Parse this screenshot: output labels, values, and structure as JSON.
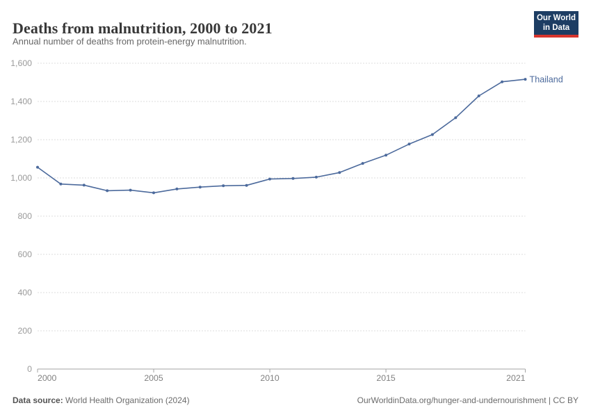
{
  "header": {
    "title": "Deaths from malnutrition, 2000 to 2021",
    "subtitle": "Annual number of deaths from protein-energy malnutrition.",
    "logo": {
      "line1": "Our World",
      "line2": "in Data"
    }
  },
  "chart_data": {
    "type": "line",
    "title": "Deaths from malnutrition, 2000 to 2021",
    "subtitle": "Annual number of deaths from protein-energy malnutrition.",
    "x": [
      2000,
      2001,
      2002,
      2003,
      2004,
      2005,
      2006,
      2007,
      2008,
      2009,
      2010,
      2011,
      2012,
      2013,
      2014,
      2015,
      2016,
      2017,
      2018,
      2019,
      2020,
      2021
    ],
    "series": [
      {
        "name": "Thailand",
        "color": "#4c6a9c",
        "values": [
          1056,
          968,
          962,
          933,
          936,
          922,
          942,
          952,
          959,
          961,
          994,
          997,
          1004,
          1028,
          1076,
          1119,
          1177,
          1227,
          1315,
          1429,
          1503,
          1516
        ]
      }
    ],
    "x_ticks": [
      2000,
      2005,
      2010,
      2015,
      2021
    ],
    "y_ticks": [
      0,
      200,
      400,
      600,
      800,
      1000,
      1200,
      1400,
      1600
    ],
    "xlim": [
      2000,
      2021
    ],
    "ylim": [
      0,
      1600
    ],
    "grid": "horizontal-dashed",
    "legend_position": "end-of-line-label",
    "colors": {
      "gridline": "#dcdcdc",
      "axis": "#a3a3a3",
      "y_tick_label": "#9a9a9a",
      "x_tick_label": "#808080"
    }
  },
  "footer": {
    "source_label": "Data source:",
    "source_text": " World Health Organization (2024)",
    "license_text": "OurWorldinData.org/hunger-and-undernourishment | CC BY"
  }
}
